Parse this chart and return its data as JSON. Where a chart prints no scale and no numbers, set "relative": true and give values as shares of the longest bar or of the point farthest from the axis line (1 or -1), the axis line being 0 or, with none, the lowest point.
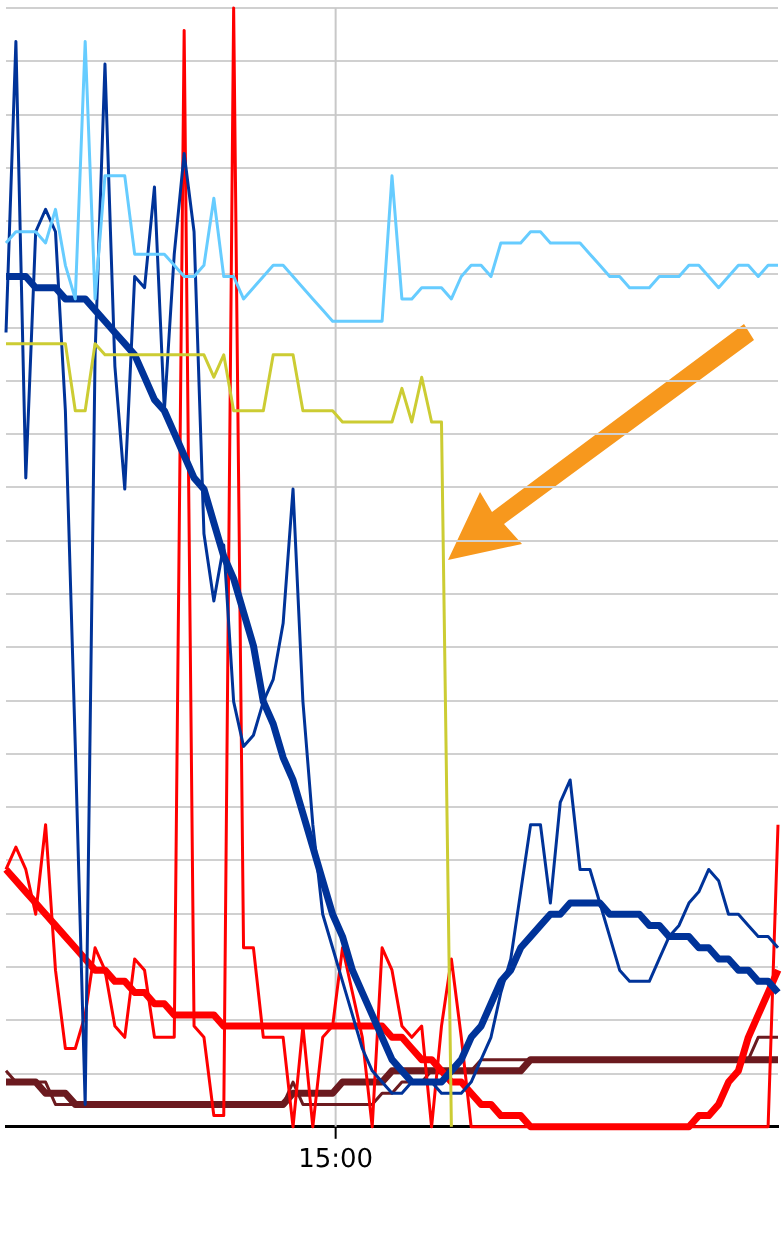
{
  "chart_data": {
    "type": "line",
    "relative": true,
    "grid": "y",
    "annotations": [
      "15:00"
    ],
    "legend": false,
    "marker": "none",
    "line_style": "solid",
    "categories": [
      null,
      null,
      null,
      null,
      null,
      null,
      null,
      null,
      null,
      null,
      null,
      null,
      null,
      null,
      null,
      null,
      null,
      null,
      null,
      null,
      null,
      null,
      null,
      null,
      null,
      null,
      null,
      null,
      null,
      null,
      null,
      null,
      null,
      null,
      null,
      null,
      null,
      null,
      null,
      null,
      null,
      null,
      null,
      null,
      null,
      null,
      null,
      null,
      null,
      null,
      null,
      null,
      null,
      null,
      null,
      null,
      null,
      null,
      null,
      null,
      null,
      null,
      null,
      null,
      null,
      null,
      null,
      null,
      null,
      null,
      null,
      null,
      null,
      null,
      null,
      null,
      null,
      null,
      null
    ],
    "series": [
      {
        "color": "#66ccff",
        "values": [
          0.79,
          0.8,
          0.8,
          0.8,
          0.79,
          0.82,
          0.77,
          0.74,
          0.97,
          0.74,
          0.85,
          0.85,
          0.85,
          0.78,
          0.78,
          0.78,
          0.78,
          0.77,
          0.76,
          0.76,
          0.77,
          0.83,
          0.76,
          0.76,
          0.74,
          0.75,
          0.76,
          0.77,
          0.77,
          0.76,
          0.75,
          0.74,
          0.73,
          0.72,
          0.72,
          0.72,
          0.72,
          0.72,
          0.72,
          0.85,
          0.74,
          0.74,
          0.75,
          0.75,
          0.75,
          0.74,
          0.76,
          0.77,
          0.77,
          0.76,
          0.79,
          0.79,
          0.79,
          0.8,
          0.8,
          0.79,
          0.79,
          0.79,
          0.79,
          0.78,
          0.77,
          0.76,
          0.76,
          0.75,
          0.75,
          0.75,
          0.76,
          0.76,
          0.76,
          0.77,
          0.77,
          0.76,
          0.75,
          0.76,
          0.77,
          0.77,
          0.76,
          0.77,
          0.77
        ]
      },
      {
        "color": "#cccc33",
        "values": [
          0.7,
          0.7,
          0.7,
          0.7,
          0.7,
          0.7,
          0.7,
          0.64,
          0.64,
          0.7,
          0.69,
          0.69,
          0.69,
          0.69,
          0.69,
          0.69,
          0.69,
          0.69,
          0.69,
          0.69,
          0.69,
          0.67,
          0.69,
          0.64,
          0.64,
          0.64,
          0.64,
          0.69,
          0.69,
          0.69,
          0.64,
          0.64,
          0.64,
          0.64,
          0.63,
          0.63,
          0.63,
          0.63,
          0.63,
          0.63,
          0.66,
          0.63,
          0.67,
          0.63,
          0.63,
          0,
          null,
          null,
          null,
          null,
          null,
          null,
          null,
          null,
          null,
          null,
          null,
          null,
          null,
          null,
          null,
          null,
          null,
          null,
          null,
          null,
          null,
          null,
          null,
          null,
          null,
          null,
          null,
          null,
          null,
          null,
          null,
          null,
          null
        ]
      },
      {
        "color": "#003399",
        "values": [
          0.71,
          0.97,
          0.58,
          0.8,
          0.82,
          0.8,
          0.64,
          0.34,
          0.02,
          0.69,
          0.95,
          0.68,
          0.57,
          0.76,
          0.75,
          0.84,
          0.64,
          0.78,
          0.87,
          0.8,
          0.53,
          0.47,
          0.52,
          0.38,
          0.34,
          0.35,
          0.38,
          0.4,
          0.45,
          0.57,
          0.38,
          0.27,
          0.19,
          0.16,
          0.13,
          0.1,
          0.07,
          0.05,
          0.04,
          0.03,
          0.03,
          0.04,
          0.04,
          0.04,
          0.03,
          0.03,
          0.03,
          0.04,
          0.06,
          0.08,
          0.12,
          0.15,
          0.21,
          0.27,
          0.27,
          0.2,
          0.29,
          0.31,
          0.23,
          0.23,
          0.2,
          0.17,
          0.14,
          0.13,
          0.13,
          0.13,
          0.15,
          0.17,
          0.18,
          0.2,
          0.21,
          0.23,
          0.22,
          0.19,
          0.19,
          0.18,
          0.17,
          0.17,
          0.16
        ]
      },
      {
        "color": "#003399",
        "values": [
          0.76,
          0.76,
          0.76,
          0.75,
          0.75,
          0.75,
          0.74,
          0.74,
          0.74,
          0.73,
          0.72,
          0.71,
          0.7,
          0.69,
          0.67,
          0.65,
          0.64,
          0.62,
          0.6,
          0.58,
          0.57,
          0.54,
          0.51,
          0.49,
          0.46,
          0.43,
          0.38,
          0.36,
          0.33,
          0.31,
          0.28,
          0.25,
          0.22,
          0.19,
          0.17,
          0.14,
          0.12,
          0.1,
          0.08,
          0.06,
          0.05,
          0.04,
          0.04,
          0.04,
          0.04,
          0.05,
          0.06,
          0.08,
          0.09,
          0.11,
          0.13,
          0.14,
          0.16,
          0.17,
          0.18,
          0.19,
          0.19,
          0.2,
          0.2,
          0.2,
          0.2,
          0.19,
          0.19,
          0.19,
          0.19,
          0.18,
          0.18,
          0.17,
          0.17,
          0.17,
          0.16,
          0.16,
          0.15,
          0.15,
          0.14,
          0.14,
          0.13,
          0.13,
          0.12
        ]
      },
      {
        "color": "#ff0000",
        "values": [
          0.23,
          0.25,
          0.23,
          0.19,
          0.27,
          0.14,
          0.07,
          0.07,
          0.1,
          0.16,
          0.14,
          0.09,
          0.08,
          0.15,
          0.14,
          0.08,
          0.08,
          0.08,
          0.98,
          0.09,
          0.08,
          0.01,
          0.01,
          1.0,
          0.16,
          0.16,
          0.08,
          0.08,
          0.08,
          0,
          0.09,
          0,
          0.08,
          0.09,
          0.16,
          0.12,
          0.08,
          0,
          0.16,
          0.14,
          0.09,
          0.08,
          0.09,
          0,
          0.09,
          0.15,
          0.08,
          0,
          0,
          0,
          0,
          0,
          0,
          0,
          0,
          0,
          0,
          0,
          0,
          0,
          0,
          0,
          0,
          0,
          0,
          0,
          0,
          0,
          0,
          0,
          0,
          0,
          0,
          0,
          0,
          0,
          0,
          0,
          0.27
        ]
      },
      {
        "color": "#ff0000",
        "values": [
          0.23,
          0.22,
          0.21,
          0.2,
          0.19,
          0.18,
          0.17,
          0.16,
          0.15,
          0.14,
          0.14,
          0.13,
          0.13,
          0.12,
          0.12,
          0.11,
          0.11,
          0.1,
          0.1,
          0.1,
          0.1,
          0.1,
          0.09,
          0.09,
          0.09,
          0.09,
          0.09,
          0.09,
          0.09,
          0.09,
          0.09,
          0.09,
          0.09,
          0.09,
          0.09,
          0.09,
          0.09,
          0.09,
          0.09,
          0.08,
          0.08,
          0.07,
          0.06,
          0.06,
          0.05,
          0.04,
          0.04,
          0.03,
          0.02,
          0.02,
          0.01,
          0.01,
          0.01,
          0,
          0,
          0,
          0,
          0,
          0,
          0,
          0,
          0,
          0,
          0,
          0,
          0,
          0,
          0,
          0,
          0,
          0.01,
          0.01,
          0.02,
          0.04,
          0.05,
          0.08,
          0.1,
          0.12,
          0.14
        ]
      },
      {
        "color": "#6b1a1f",
        "values": [
          0.05,
          0.04,
          0.04,
          0.04,
          0.04,
          0.02,
          0.02,
          0.02,
          0.02,
          0.02,
          0.02,
          0.02,
          0.02,
          0.02,
          0.02,
          0.02,
          0.02,
          0.02,
          0.02,
          0.02,
          0.02,
          0.02,
          0.02,
          0.02,
          0.02,
          0.02,
          0.02,
          0.02,
          0.02,
          0.04,
          0.02,
          0.02,
          0.02,
          0.02,
          0.02,
          0.02,
          0.02,
          0.02,
          0.03,
          0.03,
          0.04,
          0.04,
          0.04,
          0.05,
          0.05,
          0.05,
          0.05,
          0.05,
          0.06,
          0.06,
          0.06,
          0.06,
          0.06,
          0.06,
          0.06,
          0.06,
          0.06,
          0.06,
          0.06,
          0.06,
          0.06,
          0.06,
          0.06,
          0.06,
          0.06,
          0.06,
          0.06,
          0.06,
          0.06,
          0.06,
          0.06,
          0.06,
          0.06,
          0.06,
          0.06,
          0.06,
          0.08,
          0.08,
          0.08
        ]
      },
      {
        "color": "#6b1a1f",
        "values": [
          0.04,
          0.04,
          0.04,
          0.04,
          0.03,
          0.03,
          0.03,
          0.02,
          0.02,
          0.02,
          0.02,
          0.02,
          0.02,
          0.02,
          0.02,
          0.02,
          0.02,
          0.02,
          0.02,
          0.02,
          0.02,
          0.02,
          0.02,
          0.02,
          0.02,
          0.02,
          0.02,
          0.02,
          0.02,
          0.03,
          0.03,
          0.03,
          0.03,
          0.03,
          0.04,
          0.04,
          0.04,
          0.04,
          0.04,
          0.05,
          0.05,
          0.05,
          0.05,
          0.05,
          0.05,
          0.05,
          0.05,
          0.05,
          0.05,
          0.05,
          0.05,
          0.05,
          0.05,
          0.06,
          0.06,
          0.06,
          0.06,
          0.06,
          0.06,
          0.06,
          0.06,
          0.06,
          0.06,
          0.06,
          0.06,
          0.06,
          0.06,
          0.06,
          0.06,
          0.06,
          0.06,
          0.06,
          0.06,
          0.06,
          0.06,
          0.06,
          0.06,
          0.06,
          0.06
        ]
      }
    ]
  }
}
